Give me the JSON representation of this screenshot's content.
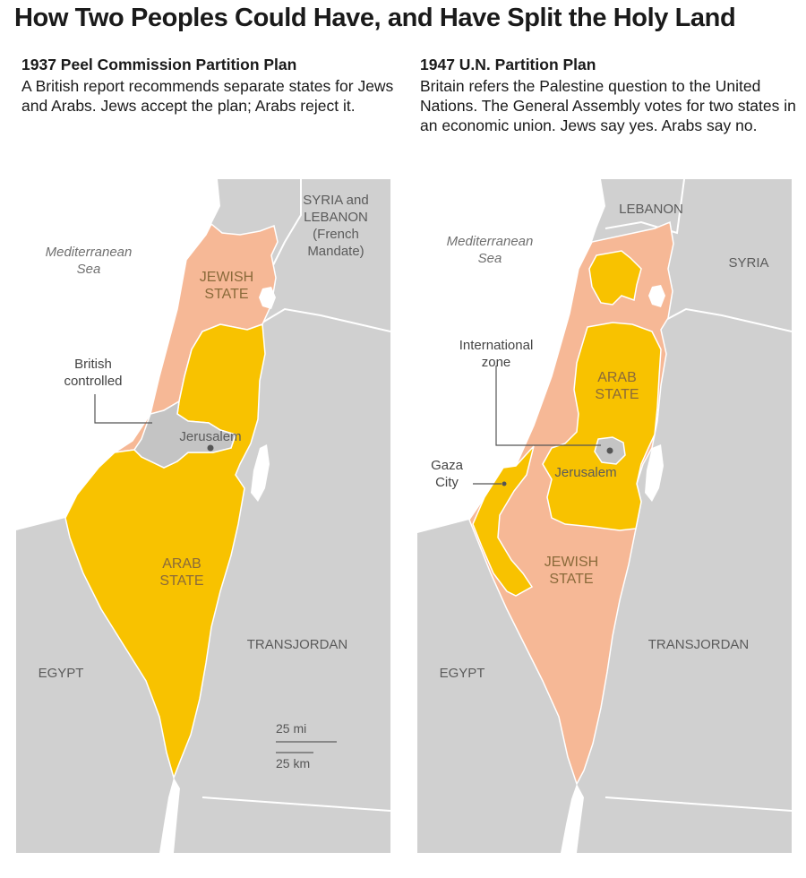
{
  "title": "How Two Peoples Could Have, and Have Split the Holy Land",
  "colors": {
    "jewish": "#f6b896",
    "arab": "#f8c200",
    "neutral": "#c8c8c8",
    "land": "#d3d3d3",
    "water": "#ffffff"
  },
  "panels": [
    {
      "heading": "1937 Peel Commission Partition Plan",
      "description": "A British report recommends separate states for Jews and Arabs. Jews accept the plan; Arabs reject it.",
      "labels": {
        "sea_line1": "Mediterranean",
        "sea_line2": "Sea",
        "syria_line1": "SYRIA and",
        "syria_line2": "LEBANON",
        "syria_line3": "(French",
        "syria_line4": "Mandate)",
        "jewish_line1": "JEWISH",
        "jewish_line2": "STATE",
        "british_line1": "British",
        "british_line2": "controlled",
        "jerusalem": "Jerusalem",
        "arab_line1": "ARAB",
        "arab_line2": "STATE",
        "transjordan": "TRANSJORDAN",
        "egypt": "EGYPT",
        "scale_mi": "25 mi",
        "scale_km": "25 km"
      }
    },
    {
      "heading": "1947 U.N. Partition Plan",
      "description": "Britain refers the Palestine question to the United Nations. The General Assembly votes for two states in an economic union. Jews say yes. Arabs say no.",
      "labels": {
        "lebanon": "LEBANON",
        "sea_line1": "Mediterranean",
        "sea_line2": "Sea",
        "syria": "SYRIA",
        "intl_line1": "International",
        "intl_line2": "zone",
        "arab_line1": "ARAB",
        "arab_line2": "STATE",
        "gaza_line1": "Gaza",
        "gaza_line2": "City",
        "jerusalem": "Jerusalem",
        "jewish_line1": "JEWISH",
        "jewish_line2": "STATE",
        "transjordan": "TRANSJORDAN",
        "egypt": "EGYPT"
      }
    }
  ]
}
